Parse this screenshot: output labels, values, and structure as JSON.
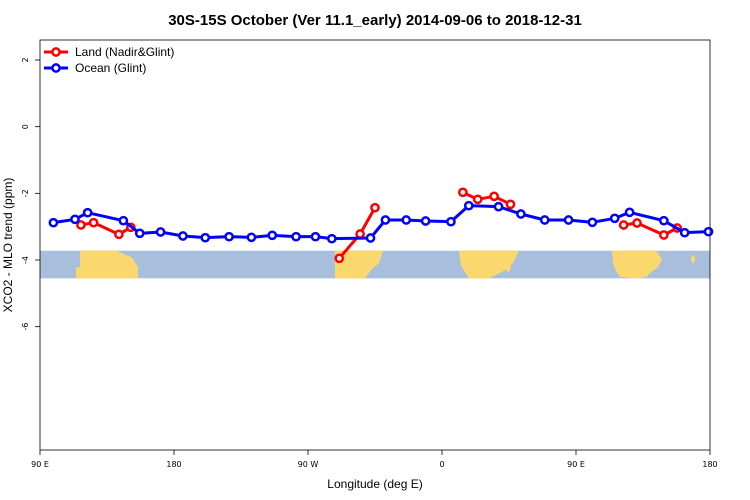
{
  "chart_data": {
    "type": "line",
    "title": "30S-15S October (Ver 11.1_early)   2014-09-06 to 2018-12-31",
    "xlabel": "Longitude (deg E)",
    "ylabel": "XCO2 - MLO trend (ppm)",
    "xlim": [
      90,
      540
    ],
    "ylim": [
      -9.7,
      2.6
    ],
    "x_ticks": [
      {
        "value": 90,
        "label": "90 E"
      },
      {
        "value": 180,
        "label": "180"
      },
      {
        "value": 270,
        "label": "90 W"
      },
      {
        "value": 360,
        "label": "0"
      },
      {
        "value": 450,
        "label": "90 E"
      },
      {
        "value": 540,
        "label": "180"
      }
    ],
    "y_ticks": [
      {
        "value": 2,
        "label": "2"
      },
      {
        "value": 0,
        "label": "0"
      },
      {
        "value": -2,
        "label": "-2"
      },
      {
        "value": -4,
        "label": "-4"
      },
      {
        "value": -6,
        "label": "-6"
      }
    ],
    "legend_position": "top-left",
    "map_band": {
      "y_range": [
        -4.55,
        -3.72
      ],
      "ocean_color": "#a7bfdd",
      "land_color": "#fbd86d"
    },
    "series": [
      {
        "name": "Land (Nadir&Glint)",
        "color": "#ff0000",
        "segments": [
          [
            [
              117.5,
              -2.95
            ],
            [
              126,
              -2.88
            ],
            [
              143,
              -3.23
            ],
            [
              151,
              -3.02
            ]
          ],
          [
            [
              291,
              -3.95
            ],
            [
              305,
              -3.22
            ],
            [
              315,
              -2.43
            ]
          ],
          [
            [
              374,
              -1.97
            ],
            [
              384,
              -2.18
            ],
            [
              395,
              -2.09
            ],
            [
              406,
              -2.33
            ]
          ],
          [
            [
              482,
              -2.95
            ],
            [
              491,
              -2.89
            ],
            [
              509,
              -3.25
            ],
            [
              518,
              -3.04
            ]
          ]
        ]
      },
      {
        "name": "Ocean (Glint)",
        "color": "#0000ff",
        "segments": [
          [
            [
              99,
              -2.88
            ],
            [
              113.5,
              -2.78
            ],
            [
              122,
              -2.58
            ],
            [
              146,
              -2.82
            ],
            [
              157,
              -3.2
            ],
            [
              171,
              -3.16
            ],
            [
              186,
              -3.28
            ],
            [
              201,
              -3.33
            ],
            [
              217,
              -3.3
            ],
            [
              232,
              -3.32
            ],
            [
              246,
              -3.26
            ],
            [
              262,
              -3.3
            ],
            [
              275,
              -3.3
            ],
            [
              286,
              -3.36
            ],
            [
              312,
              -3.34
            ],
            [
              322,
              -2.8
            ],
            [
              336,
              -2.8
            ],
            [
              349,
              -2.83
            ],
            [
              366,
              -2.85
            ],
            [
              378,
              -2.37
            ],
            [
              398,
              -2.4
            ],
            [
              413,
              -2.62
            ],
            [
              429,
              -2.8
            ],
            [
              445,
              -2.8
            ],
            [
              461,
              -2.87
            ],
            [
              476,
              -2.75
            ],
            [
              486,
              -2.57
            ],
            [
              509,
              -2.82
            ],
            [
              523,
              -3.18
            ],
            [
              539,
              -3.15
            ]
          ]
        ]
      }
    ]
  }
}
